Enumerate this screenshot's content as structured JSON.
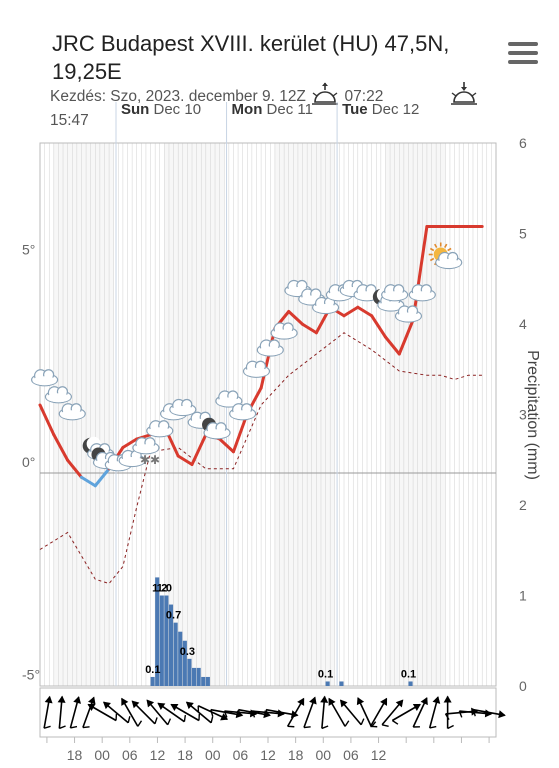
{
  "header": {
    "title": "JRC Budapest XVIII. kerület (HU) 47,5N, 19,25E",
    "subtitle_start": "Kezdés: Szo, 2023. december 9. 12Z",
    "sunrise": "07:22",
    "sunset": "15:47"
  },
  "days": [
    {
      "name": "Sun",
      "date": "Dec 10"
    },
    {
      "name": "Mon",
      "date": "Dec 11"
    },
    {
      "name": "Tue",
      "date": "Dec 12"
    }
  ],
  "chart_data": {
    "type": "line",
    "x_unit": "hours from 2023-12-09 12Z",
    "x_tick_labels": [
      "18",
      "00",
      "06",
      "12",
      "18",
      "00",
      "06",
      "12",
      "18",
      "00",
      "06",
      "12"
    ],
    "y_left_ticks": [
      "5°",
      "0°",
      "-5°"
    ],
    "y_left_range": [
      -5,
      10
    ],
    "y_right_ticks": [
      "6",
      "5",
      "4",
      "3",
      "2",
      "1",
      "0"
    ],
    "ylabel_right": "Precipitation (mm)",
    "temperature": {
      "x": [
        0,
        3,
        6,
        9,
        12,
        15,
        18,
        21,
        24,
        27,
        30,
        33,
        36,
        39,
        42,
        45,
        48,
        51,
        54,
        57,
        60,
        63,
        66,
        69,
        72,
        75,
        78,
        81,
        84,
        87,
        90,
        93,
        96
      ],
      "y": [
        1.6,
        0.9,
        0.3,
        -0.1,
        -0.3,
        0.1,
        0.6,
        0.8,
        0.9,
        1.1,
        0.4,
        0.2,
        0.9,
        0.8,
        0.5,
        1.4,
        2.0,
        3.4,
        3.8,
        3.5,
        3.3,
        3.9,
        3.7,
        3.9,
        3.7,
        3.2,
        2.8,
        3.6,
        5.8,
        5.8,
        5.8,
        5.8,
        5.8
      ]
    },
    "dewpoint": {
      "x": [
        0,
        6,
        12,
        15,
        18,
        21,
        24,
        30,
        36,
        42,
        48,
        54,
        60,
        66,
        72,
        78,
        84,
        87,
        90,
        93,
        96
      ],
      "y": [
        -1.8,
        -1.4,
        -2.5,
        -2.6,
        -2.2,
        -0.8,
        0.5,
        0.6,
        0.1,
        0.1,
        1.6,
        2.3,
        2.8,
        3.3,
        2.9,
        2.4,
        2.3,
        2.3,
        2.2,
        2.3,
        2.3
      ]
    },
    "precipitation": {
      "x": [
        24,
        25,
        26,
        27,
        28,
        29,
        30,
        31,
        32,
        33,
        34,
        35,
        36,
        62,
        65,
        80
      ],
      "values": [
        0.1,
        1.2,
        1.0,
        1.0,
        0.9,
        0.7,
        0.6,
        0.5,
        0.3,
        0.2,
        0.2,
        0.1,
        0.1,
        0.05,
        0.05,
        0.05
      ],
      "labels": [
        {
          "x": 24.5,
          "text": "0.1"
        },
        {
          "x": 26,
          "text": "1.2"
        },
        {
          "x": 27,
          "text": "1.0"
        },
        {
          "x": 29,
          "text": "0.7"
        },
        {
          "x": 32,
          "text": "0.3"
        },
        {
          "x": 62,
          "text": "0.1"
        },
        {
          "x": 80,
          "text": "0.1"
        }
      ]
    },
    "wind_directions_deg": [
      10,
      5,
      15,
      20,
      300,
      310,
      330,
      315,
      320,
      305,
      300,
      310,
      115,
      100,
      95,
      100,
      95,
      100,
      30,
      20,
      5,
      330,
      320,
      335,
      30,
      40,
      60,
      25,
      15,
      0,
      85,
      95,
      100
    ],
    "weather_icons": [
      {
        "x": 1,
        "y": 2.1,
        "icon": "cloud-icon"
      },
      {
        "x": 4,
        "y": 1.7,
        "icon": "cloud-icon"
      },
      {
        "x": 7,
        "y": 1.3,
        "icon": "cloud-icon"
      },
      {
        "x": 11,
        "y": 0.5,
        "icon": "moon-icon"
      },
      {
        "x": 14,
        "y": 0.2,
        "icon": "moon-cloud-icon"
      },
      {
        "x": 17,
        "y": 0.1,
        "icon": "cloud-icon"
      },
      {
        "x": 20,
        "y": 0.2,
        "icon": "cloud-icon"
      },
      {
        "x": 23,
        "y": 0.5,
        "icon": "snow-cloud-icon"
      },
      {
        "x": 26,
        "y": 0.9,
        "icon": "cloud-icon"
      },
      {
        "x": 29,
        "y": 1.3,
        "icon": "cloud-icon"
      },
      {
        "x": 31,
        "y": 1.4,
        "icon": "cloud-icon"
      },
      {
        "x": 35,
        "y": 1.1,
        "icon": "cloud-icon"
      },
      {
        "x": 38,
        "y": 0.9,
        "icon": "moon-cloud-icon"
      },
      {
        "x": 41,
        "y": 1.6,
        "icon": "cloud-icon"
      },
      {
        "x": 44,
        "y": 1.3,
        "icon": "cloud-icon"
      },
      {
        "x": 47,
        "y": 2.3,
        "icon": "cloud-icon"
      },
      {
        "x": 50,
        "y": 2.8,
        "icon": "cloud-icon"
      },
      {
        "x": 53,
        "y": 3.2,
        "icon": "cloud-icon"
      },
      {
        "x": 56,
        "y": 4.2,
        "icon": "cloud-icon"
      },
      {
        "x": 59,
        "y": 4.0,
        "icon": "cloud-icon"
      },
      {
        "x": 62,
        "y": 3.8,
        "icon": "cloud-icon"
      },
      {
        "x": 65,
        "y": 4.1,
        "icon": "cloud-icon"
      },
      {
        "x": 68,
        "y": 4.2,
        "icon": "cloud-icon"
      },
      {
        "x": 71,
        "y": 4.1,
        "icon": "cloud-icon"
      },
      {
        "x": 74,
        "y": 4.0,
        "icon": "moon-icon"
      },
      {
        "x": 77,
        "y": 4.1,
        "icon": "cloud-icon"
      },
      {
        "x": 80,
        "y": 3.6,
        "icon": "cloud-icon"
      },
      {
        "x": 83,
        "y": 4.1,
        "icon": "cloud-icon"
      },
      {
        "x": 87,
        "y": 5.0,
        "icon": "sun-cloud-icon"
      }
    ]
  },
  "colors": {
    "temp_warm": "#d83a2e",
    "temp_cold": "#5fa3dc",
    "dewpoint": "#8b2222",
    "precip_bar": "#4b79b3",
    "grid": "#d0d0d0",
    "night_band": "#ececec"
  }
}
